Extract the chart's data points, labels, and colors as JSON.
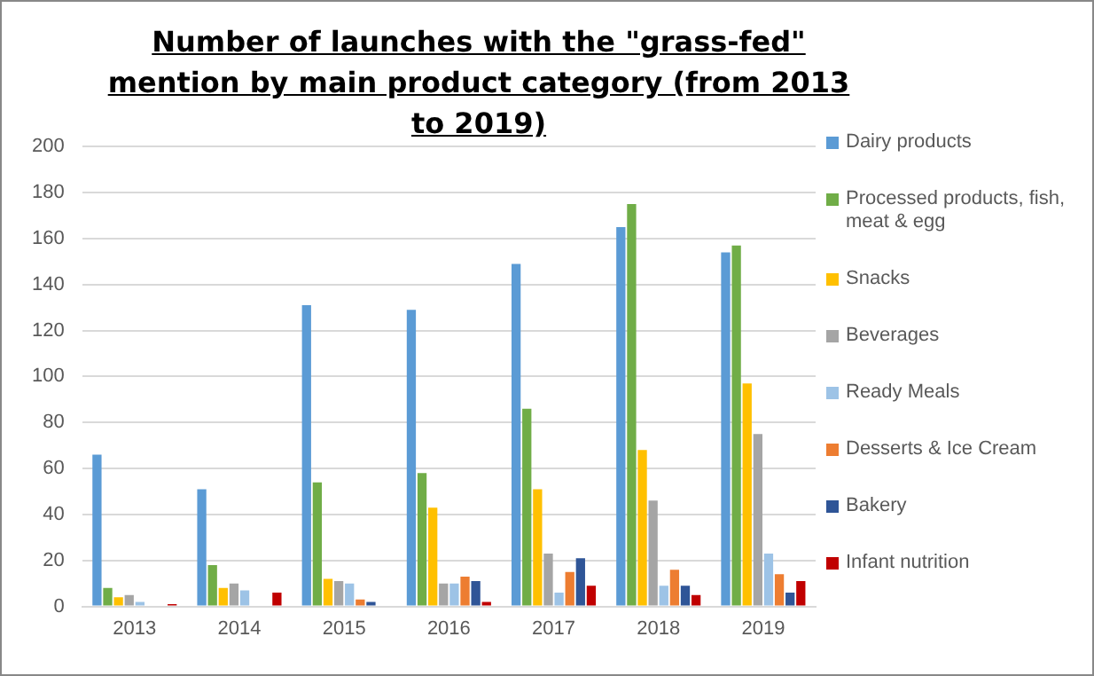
{
  "chart_data": {
    "type": "bar",
    "title": "Number of launches with the \"grass-fed\" mention by main product category (from 2013 to 2019)",
    "categories": [
      "2013",
      "2014",
      "2015",
      "2016",
      "2017",
      "2018",
      "2019"
    ],
    "series": [
      {
        "name": "Dairy products",
        "color": "#5b9bd5",
        "values": [
          66,
          51,
          131,
          129,
          149,
          165,
          154
        ]
      },
      {
        "name": "Processed products, fish, meat & egg",
        "color": "#70ad47",
        "values": [
          8,
          18,
          54,
          58,
          86,
          175,
          157
        ]
      },
      {
        "name": "Snacks",
        "color": "#ffc000",
        "values": [
          4,
          8,
          12,
          43,
          51,
          68,
          97
        ]
      },
      {
        "name": "Beverages",
        "color": "#a5a5a5",
        "values": [
          5,
          10,
          11,
          10,
          23,
          46,
          75
        ]
      },
      {
        "name": "Ready Meals",
        "color": "#9dc3e6",
        "values": [
          2,
          7,
          10,
          10,
          6,
          9,
          23
        ]
      },
      {
        "name": "Desserts & Ice Cream",
        "color": "#ed7d31",
        "values": [
          0,
          0,
          3,
          13,
          15,
          16,
          14
        ]
      },
      {
        "name": "Bakery",
        "color": "#2f5597",
        "values": [
          0,
          0,
          2,
          11,
          21,
          9,
          6
        ]
      },
      {
        "name": "Infant nutrition",
        "color": "#c00000",
        "values": [
          1,
          6,
          0,
          2,
          9,
          5,
          11
        ]
      }
    ],
    "ylim": [
      0,
      200
    ],
    "yticks": [
      0,
      20,
      40,
      60,
      80,
      100,
      120,
      140,
      160,
      180,
      200
    ],
    "grid": "y",
    "legend": "right"
  }
}
